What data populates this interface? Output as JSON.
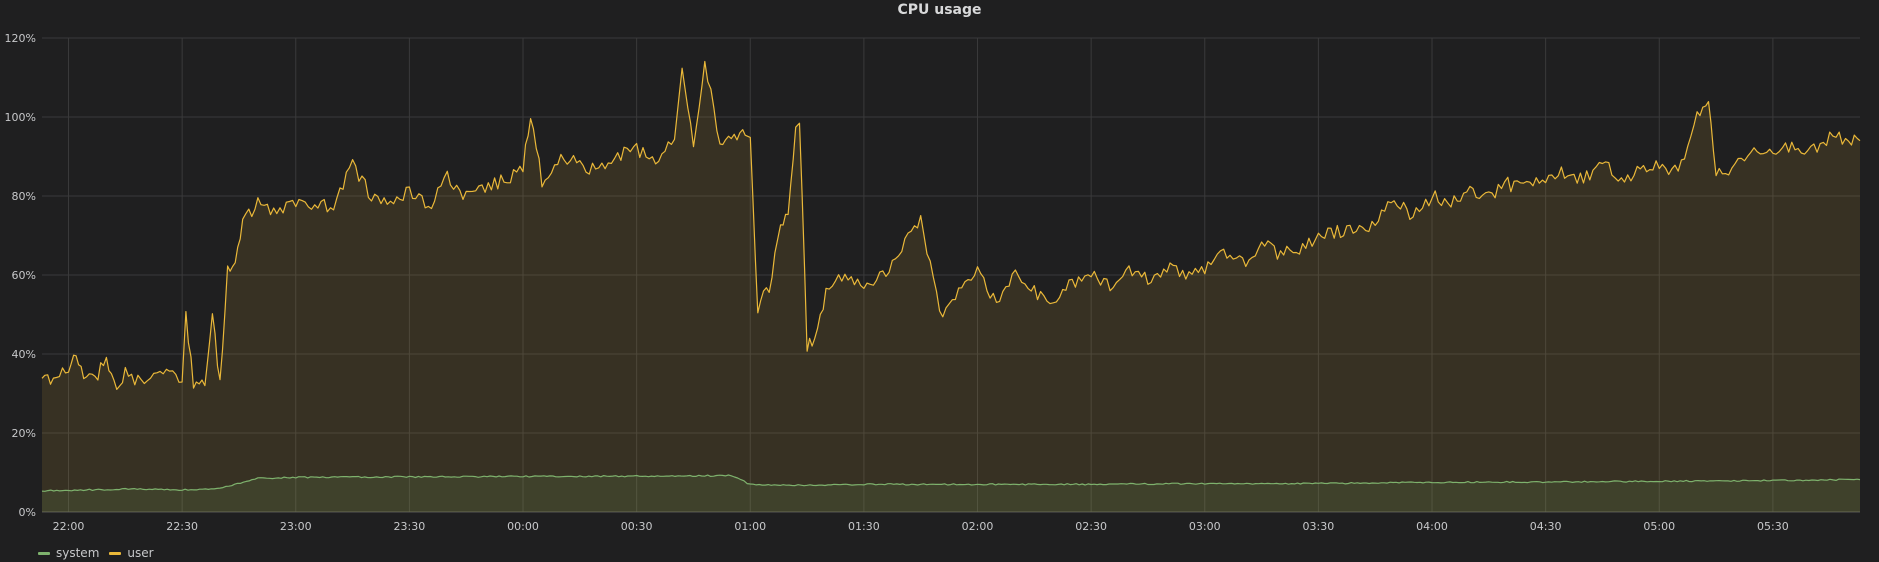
{
  "panel": {
    "title": "CPU usage"
  },
  "colors": {
    "system": "#7eb26d",
    "user": "#eab839",
    "grid": "#3a3a3b",
    "background": "#1f1f20"
  },
  "chart_data": {
    "type": "area",
    "title": "CPU usage",
    "xlabel": "",
    "ylabel": "",
    "ylim": [
      0,
      120
    ],
    "y_ticks": [
      "0%",
      "20%",
      "40%",
      "60%",
      "80%",
      "100%",
      "120%"
    ],
    "x_ticks": [
      "22:00",
      "22:30",
      "23:00",
      "23:30",
      "00:00",
      "00:30",
      "01:00",
      "01:30",
      "02:00",
      "02:30",
      "03:00",
      "03:30",
      "04:00",
      "04:30",
      "05:00",
      "05:30"
    ],
    "x_range": [
      "21:53",
      "05:53"
    ],
    "grid": true,
    "legend_position": "bottom-left",
    "series": [
      {
        "name": "system",
        "color": "#7eb26d",
        "x": [
          "21:53",
          "22:00",
          "22:15",
          "22:30",
          "22:40",
          "22:50",
          "23:00",
          "23:30",
          "00:00",
          "00:30",
          "00:55",
          "01:00",
          "01:15",
          "01:30",
          "02:00",
          "02:30",
          "03:00",
          "03:30",
          "04:00",
          "04:30",
          "05:00",
          "05:30",
          "05:53"
        ],
        "values": [
          5.3,
          5.5,
          5.8,
          5.6,
          6.0,
          8.5,
          8.8,
          8.9,
          9.0,
          9.1,
          9.2,
          7.0,
          6.8,
          7.0,
          7.0,
          7.0,
          7.2,
          7.2,
          7.5,
          7.6,
          7.8,
          8.0,
          8.2
        ]
      },
      {
        "name": "user",
        "color": "#eab839",
        "x": [
          "21:53",
          "21:56",
          "22:00",
          "22:02",
          "22:04",
          "22:07",
          "22:10",
          "22:12",
          "22:15",
          "22:20",
          "22:25",
          "22:30",
          "22:31",
          "22:33",
          "22:36",
          "22:38",
          "22:40",
          "22:42",
          "22:44",
          "22:46",
          "22:50",
          "22:55",
          "23:00",
          "23:05",
          "23:10",
          "23:15",
          "23:20",
          "23:25",
          "23:30",
          "23:35",
          "23:40",
          "23:45",
          "23:50",
          "23:55",
          "00:00",
          "00:02",
          "00:05",
          "00:10",
          "00:15",
          "00:20",
          "00:25",
          "00:30",
          "00:35",
          "00:40",
          "00:42",
          "00:45",
          "00:48",
          "00:52",
          "00:55",
          "00:58",
          "01:00",
          "01:02",
          "01:05",
          "01:08",
          "01:10",
          "01:12",
          "01:13",
          "01:15",
          "01:17",
          "01:20",
          "01:25",
          "01:30",
          "01:35",
          "01:40",
          "01:45",
          "01:50",
          "01:55",
          "02:00",
          "02:05",
          "02:10",
          "02:15",
          "02:20",
          "02:25",
          "02:30",
          "02:35",
          "02:40",
          "02:45",
          "02:50",
          "02:55",
          "03:00",
          "03:05",
          "03:10",
          "03:15",
          "03:20",
          "03:25",
          "03:30",
          "03:35",
          "03:40",
          "03:45",
          "03:50",
          "03:55",
          "04:00",
          "04:05",
          "04:10",
          "04:15",
          "04:20",
          "04:25",
          "04:30",
          "04:35",
          "04:40",
          "04:45",
          "04:50",
          "04:55",
          "05:00",
          "05:05",
          "05:10",
          "05:13",
          "05:15",
          "05:20",
          "05:25",
          "05:30",
          "05:35",
          "05:40",
          "05:45",
          "05:50",
          "05:53"
        ],
        "values": [
          34,
          33,
          36,
          41,
          34,
          33,
          40,
          32,
          35,
          32,
          36,
          34,
          49,
          32,
          33,
          49,
          33,
          62,
          62,
          74,
          78,
          75,
          79,
          78,
          77,
          88,
          80,
          78,
          81,
          77,
          85,
          80,
          82,
          84,
          87,
          101,
          84,
          90,
          88,
          86,
          90,
          92,
          88,
          96,
          111,
          93,
          113,
          94,
          95,
          96,
          94,
          52,
          57,
          72,
          75,
          96,
          100,
          41,
          45,
          55,
          60,
          58,
          60,
          67,
          75,
          50,
          55,
          62,
          52,
          60,
          56,
          52,
          58,
          60,
          57,
          62,
          59,
          62,
          60,
          62,
          65,
          63,
          68,
          65,
          67,
          70,
          71,
          72,
          73,
          79,
          75,
          80,
          78,
          82,
          80,
          83,
          82,
          84,
          86,
          84,
          88,
          85,
          86,
          88,
          86,
          100,
          103,
          85,
          88,
          92,
          90,
          93,
          91,
          95,
          94,
          94
        ]
      }
    ]
  }
}
